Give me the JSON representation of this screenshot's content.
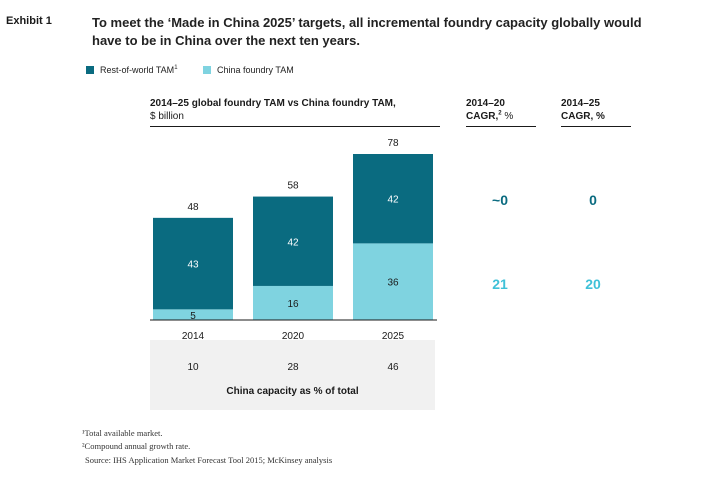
{
  "exhibit_label": "Exhibit 1",
  "headline": "To meet the ‘Made in China 2025’ targets, all incremental foundry capacity globally would have to be in China over the next ten years.",
  "legend": [
    {
      "label": "Rest-of-world TAM",
      "sup": "1",
      "color": "#0a6b80"
    },
    {
      "label": "China foundry TAM",
      "sup": "",
      "color": "#7fd3e0"
    }
  ],
  "chart_title": {
    "bold": "2014–25 global foundry TAM vs China foundry TAM,",
    "unit": "$ billion"
  },
  "cagr_headers": [
    {
      "line1": "2014–20",
      "line2": "CAGR,",
      "sup": "2",
      "suffix": " %"
    },
    {
      "line1": "2014–25",
      "line2": "CAGR, %",
      "sup": "",
      "suffix": ""
    }
  ],
  "cagr_values": {
    "rest_of_world": [
      "~0",
      "0"
    ],
    "china": [
      "21",
      "20"
    ]
  },
  "colors": {
    "rest_of_world": "#0a6b80",
    "china": "#7fd3e0",
    "cagr_dark": "#0a6b80",
    "cagr_light": "#3fc1d8"
  },
  "chart_data": {
    "type": "bar",
    "stacked": true,
    "title": "2014–25 global foundry TAM vs China foundry TAM, $ billion",
    "categories": [
      "2014",
      "2020",
      "2025"
    ],
    "series": [
      {
        "name": "China foundry TAM",
        "values": [
          5,
          16,
          36
        ]
      },
      {
        "name": "Rest-of-world TAM",
        "values": [
          43,
          42,
          42
        ]
      }
    ],
    "totals": [
      48,
      58,
      78
    ],
    "ylim": [
      0,
      78
    ]
  },
  "china_capacity": {
    "label": "China capacity as % of total",
    "values": [
      "10",
      "28",
      "46"
    ]
  },
  "footnotes": [
    "¹Total available market.",
    "²Compound annual growth rate.",
    "Source: IHS Application Market Forecast Tool 2015; McKinsey analysis"
  ]
}
